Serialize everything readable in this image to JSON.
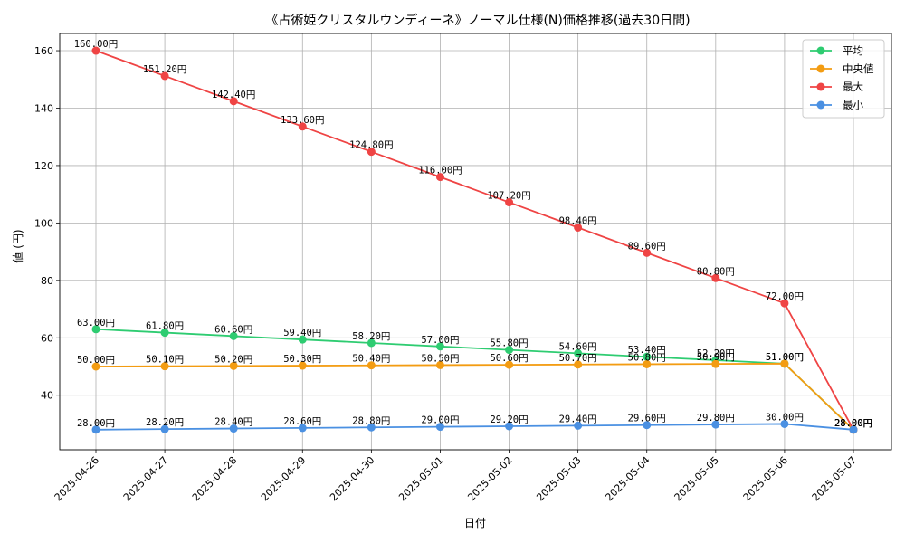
{
  "chart_data": {
    "type": "line",
    "title": "《占術姫クリスタルウンディーネ》ノーマル仕様(N)価格推移(過去30日間)",
    "xlabel": "日付",
    "ylabel": "値 (円)",
    "categories": [
      "2025-04-26",
      "2025-04-27",
      "2025-04-28",
      "2025-04-29",
      "2025-04-30",
      "2025-05-01",
      "2025-05-02",
      "2025-05-03",
      "2025-05-04",
      "2025-05-05",
      "2025-05-06",
      "2025-05-07"
    ],
    "ylim": [
      21,
      166
    ],
    "yticks": [
      40,
      60,
      80,
      100,
      120,
      140,
      160
    ],
    "grid": true,
    "legend_position": "top-right",
    "label_suffix": "円",
    "series": [
      {
        "name": "平均",
        "color": "#2ecc71",
        "values": [
          63.0,
          61.8,
          60.6,
          59.4,
          58.2,
          57.0,
          55.8,
          54.6,
          53.4,
          52.2,
          51.0,
          28.0
        ],
        "labels": [
          "63.00円",
          "61.80円",
          "60.60円",
          "59.40円",
          "58.20円",
          "57.00円",
          "55.80円",
          "54.60円",
          "53.40円",
          "52.20円",
          "51.00円",
          "28.00円"
        ]
      },
      {
        "name": "中央値",
        "color": "#f39c12",
        "values": [
          50.0,
          50.1,
          50.2,
          50.3,
          50.4,
          50.5,
          50.6,
          50.7,
          50.8,
          50.9,
          51.0,
          28.0
        ],
        "labels": [
          "50.00円",
          "50.10円",
          "50.20円",
          "50.30円",
          "50.40円",
          "50.50円",
          "50.60円",
          "50.70円",
          "50.80円",
          "50.90円",
          "51.00円",
          "28.00円"
        ]
      },
      {
        "name": "最大",
        "color": "#ef4444",
        "values": [
          160.0,
          151.2,
          142.4,
          133.6,
          124.8,
          116.0,
          107.2,
          98.4,
          89.6,
          80.8,
          72.0,
          28.0
        ],
        "labels": [
          "160.00円",
          "151.20円",
          "142.40円",
          "133.60円",
          "124.80円",
          "116.00円",
          "107.20円",
          "98.40円",
          "89.60円",
          "80.80円",
          "72.00円",
          "28.00円"
        ]
      },
      {
        "name": "最小",
        "color": "#4a90e2",
        "values": [
          28.0,
          28.2,
          28.4,
          28.6,
          28.8,
          29.0,
          29.2,
          29.4,
          29.6,
          29.8,
          30.0,
          28.0
        ],
        "labels": [
          "28.00円",
          "28.20円",
          "28.40円",
          "28.60円",
          "28.80円",
          "29.00円",
          "29.20円",
          "29.40円",
          "29.60円",
          "29.80円",
          "30.00円",
          "28.00円"
        ]
      }
    ]
  }
}
